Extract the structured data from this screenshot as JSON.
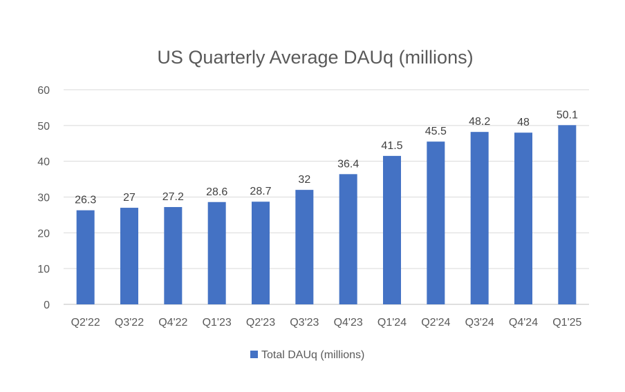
{
  "chart_data": {
    "type": "bar",
    "title": "US Quarterly Average DAUq (millions)",
    "xlabel": "",
    "ylabel": "",
    "ylim": [
      0,
      60
    ],
    "yticks": [
      0,
      10,
      20,
      30,
      40,
      50,
      60
    ],
    "grid": true,
    "legend_position": "bottom",
    "categories": [
      "Q2'22",
      "Q3'22",
      "Q4'22",
      "Q1'23",
      "Q2'23",
      "Q3'23",
      "Q4'23",
      "Q1'24",
      "Q2'24",
      "Q3'24",
      "Q4'24",
      "Q1'25"
    ],
    "series": [
      {
        "name": "Total DAUq (millions)",
        "color": "#4472c4",
        "values": [
          26.3,
          27,
          27.2,
          28.6,
          28.7,
          32,
          36.4,
          41.5,
          45.5,
          48.2,
          48,
          50.1
        ]
      }
    ]
  }
}
